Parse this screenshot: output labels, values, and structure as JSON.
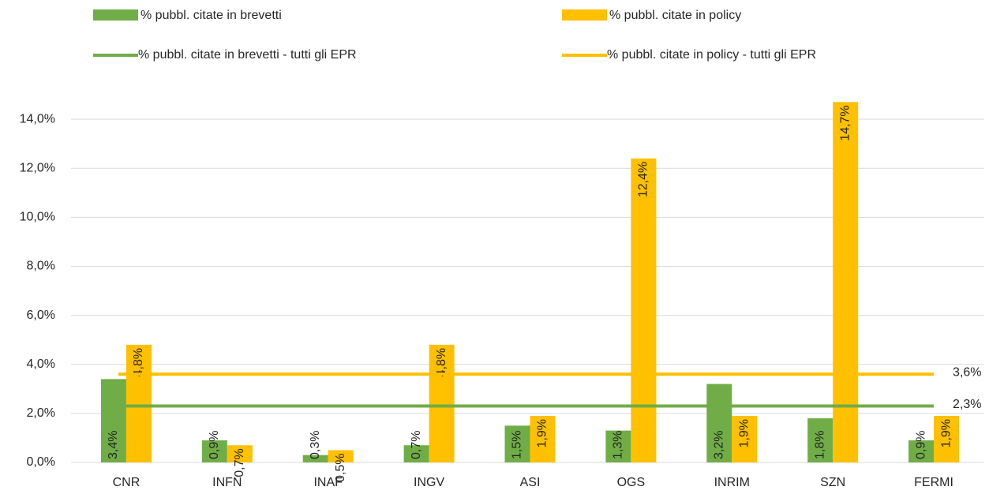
{
  "chart_data": {
    "type": "bar",
    "categories": [
      "CNR",
      "INFN",
      "INAF",
      "INGV",
      "ASI",
      "OGS",
      "INRIM",
      "SZN",
      "FERMI"
    ],
    "series": [
      {
        "name": "% pubbl. citate in brevetti",
        "color": "#70ad47",
        "values": [
          3.4,
          0.9,
          0.3,
          0.7,
          1.5,
          1.3,
          3.2,
          1.8,
          0.9
        ],
        "value_labels": [
          "3,4%",
          "0,9%",
          "0,3%",
          "0,7%",
          "1,5%",
          "1,3%",
          "3,2%",
          "1,8%",
          "0,9%"
        ]
      },
      {
        "name": "% pubbl. citate in policy",
        "color": "#ffc000",
        "values": [
          4.8,
          0.7,
          0.5,
          4.8,
          1.9,
          12.4,
          1.9,
          14.7,
          1.9
        ],
        "value_labels": [
          "4,8%",
          "0,7%",
          "0,5%",
          "4,8%",
          "1,9%",
          "12,4%",
          "1,9%",
          "14,7%",
          "1,9%"
        ]
      }
    ],
    "reference_lines": [
      {
        "name": "% pubbl. citate in brevetti - tutti gli EPR",
        "color": "#70ad47",
        "value": 2.3,
        "value_label": "2,3%"
      },
      {
        "name": "% pubbl. citate in policy - tutti gli EPR",
        "color": "#ffc000",
        "value": 3.6,
        "value_label": "3,6%"
      }
    ],
    "ylim": [
      0,
      15
    ],
    "yticks": [
      {
        "value": 0,
        "label": "0,0%"
      },
      {
        "value": 2,
        "label": "2,0%"
      },
      {
        "value": 4,
        "label": "4,0%"
      },
      {
        "value": 6,
        "label": "6,0%"
      },
      {
        "value": 8,
        "label": "8,0%"
      },
      {
        "value": 10,
        "label": "10,0%"
      },
      {
        "value": 12,
        "label": "12,0%"
      },
      {
        "value": 14,
        "label": "14,0%"
      }
    ],
    "grid": true
  }
}
